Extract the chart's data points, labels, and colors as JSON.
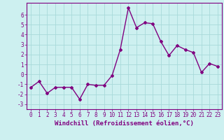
{
  "x": [
    0,
    1,
    2,
    3,
    4,
    5,
    6,
    7,
    8,
    9,
    10,
    11,
    12,
    13,
    14,
    15,
    16,
    17,
    18,
    19,
    20,
    21,
    22,
    23
  ],
  "y": [
    -1.3,
    -0.7,
    -1.9,
    -1.3,
    -1.3,
    -1.3,
    -2.5,
    -1.0,
    -1.1,
    -1.1,
    -0.1,
    2.5,
    6.7,
    4.7,
    5.2,
    5.1,
    3.3,
    1.9,
    2.9,
    2.5,
    2.2,
    0.2,
    1.1,
    0.8
  ],
  "line_color": "#800080",
  "marker": "D",
  "marker_size": 2.0,
  "bg_color": "#cdf0f0",
  "grid_color": "#a8dada",
  "xlabel": "Windchill (Refroidissement éolien,°C)",
  "xlim": [
    -0.5,
    23.5
  ],
  "ylim": [
    -3.5,
    7.2
  ],
  "yticks": [
    -3,
    -2,
    -1,
    0,
    1,
    2,
    3,
    4,
    5,
    6
  ],
  "xticks": [
    0,
    1,
    2,
    3,
    4,
    5,
    6,
    7,
    8,
    9,
    10,
    11,
    12,
    13,
    14,
    15,
    16,
    17,
    18,
    19,
    20,
    21,
    22,
    23
  ],
  "tick_label_fontsize": 5.5,
  "xlabel_fontsize": 6.5,
  "line_width": 1.0
}
